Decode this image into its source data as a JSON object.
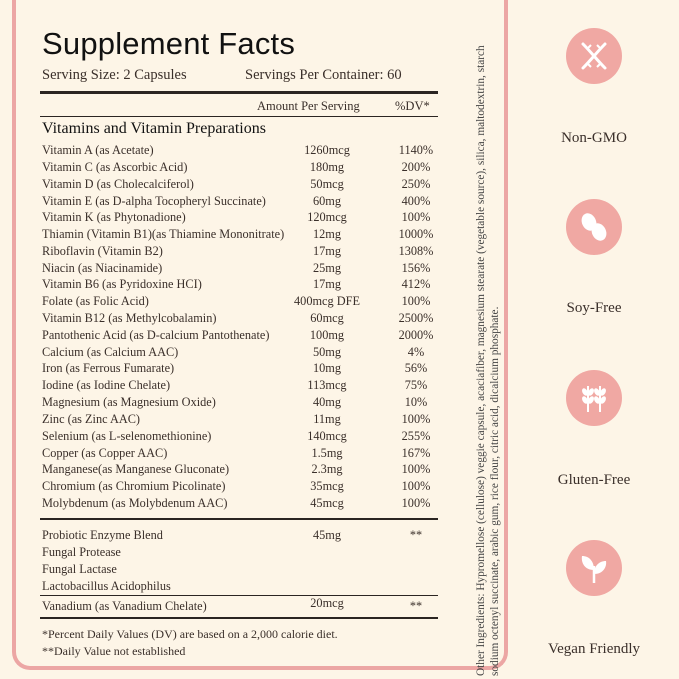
{
  "title": "Supplement Facts",
  "serving_size": "Serving Size: 2 Capsules",
  "servings_per_container": "Servings Per Container: 60",
  "header_amount": "Amount Per Serving",
  "header_dv": "%DV*",
  "section_title": "Vitamins and Vitamin Preparations",
  "nutrients": [
    {
      "name": "Vitamin A (as Acetate)",
      "amount": "1260mcg",
      "dv": "1140%"
    },
    {
      "name": "Vitamin C (as Ascorbic Acid)",
      "amount": "180mg",
      "dv": "200%"
    },
    {
      "name": "Vitamin D (as Cholecalciferol)",
      "amount": "50mcg",
      "dv": "250%"
    },
    {
      "name": "Vitamin E (as D-alpha Tocopheryl Succinate)",
      "amount": "60mg",
      "dv": "400%"
    },
    {
      "name": "Vitamin K (as Phytonadione)",
      "amount": "120mcg",
      "dv": "100%"
    },
    {
      "name": "Thiamin (Vitamin B1)(as Thiamine Mononitrate)",
      "amount": "12mg",
      "dv": "1000%"
    },
    {
      "name": "Riboflavin (Vitamin B2)",
      "amount": "17mg",
      "dv": "1308%"
    },
    {
      "name": "Niacin (as Niacinamide)",
      "amount": "25mg",
      "dv": "156%"
    },
    {
      "name": "Vitamin B6 (as Pyridoxine HCI)",
      "amount": "17mg",
      "dv": "412%"
    },
    {
      "name": "Folate (as Folic Acid)",
      "amount": "400mcg DFE",
      "dv": "100%"
    },
    {
      "name": "Vitamin B12 (as Methylcobalamin)",
      "amount": "60mcg",
      "dv": "2500%"
    },
    {
      "name": "Pantothenic Acid (as D-calcium Pantothenate)",
      "amount": "100mg",
      "dv": "2000%"
    },
    {
      "name": "Calcium (as Calcium AAC)",
      "amount": "50mg",
      "dv": "4%"
    },
    {
      "name": "Iron (as Ferrous Fumarate)",
      "amount": "10mg",
      "dv": "56%"
    },
    {
      "name": "Iodine (as Iodine Chelate)",
      "amount": "113mcg",
      "dv": "75%"
    },
    {
      "name": "Magnesium (as Magnesium Oxide)",
      "amount": "40mg",
      "dv": "10%"
    },
    {
      "name": "Zinc (as Zinc AAC)",
      "amount": "11mg",
      "dv": "100%"
    },
    {
      "name": "Selenium (as L-selenomethionine)",
      "amount": "140mcg",
      "dv": "255%"
    },
    {
      "name": "Copper (as Copper AAC)",
      "amount": "1.5mg",
      "dv": "167%"
    },
    {
      "name": "Manganese(as Manganese Gluconate)",
      "amount": "2.3mg",
      "dv": "100%"
    },
    {
      "name": "Chromium (as Chromium Picolinate)",
      "amount": "35mcg",
      "dv": "100%"
    },
    {
      "name": "Molybdenum (as Molybdenum AAC)",
      "amount": "45mcg",
      "dv": "100%"
    }
  ],
  "probiotic": {
    "name": "Probiotic Enzyme Blend",
    "amount": "45mg",
    "dv": "**"
  },
  "probiotic_items": [
    "Fungal Protease",
    "Fungal Lactase",
    "Lactobacillus Acidophilus"
  ],
  "vanadium": {
    "name": "Vanadium (as Vanadium Chelate)",
    "amount": "20mcg",
    "dv": "**"
  },
  "footnote1": "*Percent Daily Values (DV) are based on a 2,000 calorie diet.",
  "footnote2": "**Daily Value not established",
  "other_ingredients": "Other Ingredients: Hypromellose (cellulose) veggie capsule, acaciafiber, magnesium stearate (vegetable source), silica, maltodextrin, starch sodium octenyl succinate, arabic gum, rice flour, citric acid, dicalcium phosphate.",
  "badges": [
    {
      "label": "Non-GMO",
      "icon": "dna-icon"
    },
    {
      "label": "Soy-Free",
      "icon": "soybean-icon"
    },
    {
      "label": "Gluten-Free",
      "icon": "wheat-icon"
    },
    {
      "label": "Vegan Friendly",
      "icon": "leaf-icon"
    }
  ],
  "colors": {
    "accent": "#f0a8a3",
    "border": "#eca6a4",
    "background": "#fdf5e7"
  }
}
